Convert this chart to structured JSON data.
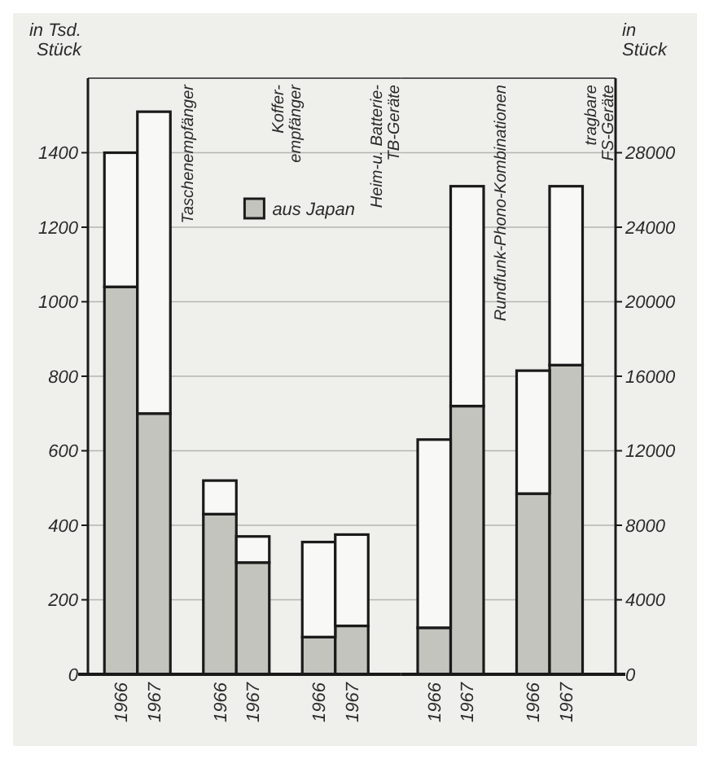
{
  "chart_data": [
    {
      "type": "bar",
      "stacked": true,
      "ylabel": "in Tsd.\nStück",
      "categories": [
        "1966",
        "1967",
        null,
        "1966",
        "1967",
        null,
        "1966",
        "1967",
        null
      ],
      "series": [
        {
          "name": "aus Japan",
          "color": "#c4c4be",
          "values": [
            1040,
            700,
            null,
            430,
            300,
            null,
            100,
            130,
            null
          ]
        },
        {
          "color": "#f8f8f6",
          "values": [
            360,
            810,
            null,
            90,
            70,
            null,
            255,
            245,
            null
          ]
        }
      ],
      "ylim": [
        0,
        1600
      ],
      "yticks": [
        0,
        200,
        400,
        600,
        800,
        1000,
        1200,
        1400
      ],
      "annotations": [
        "Taschenempfänger",
        "Koffer-\nempfänger",
        "Heim-u. Batterie-\nTB-Geräte"
      ],
      "grid": "y",
      "legend": "top right"
    },
    {
      "type": "bar",
      "stacked": true,
      "ylabel": "in\nStück",
      "categories": [
        "1966",
        "1967",
        null,
        "1966",
        "1967",
        null
      ],
      "series": [
        {
          "color": "#c4c4be",
          "values": [
            2500,
            14400,
            null,
            9700,
            16600,
            null
          ]
        },
        {
          "color": "#f8f8f6",
          "values": [
            10100,
            11800,
            null,
            6600,
            9600,
            null
          ]
        }
      ],
      "ylim": [
        0,
        32000
      ],
      "yticks": [
        0,
        4000,
        8000,
        12000,
        16000,
        20000,
        24000,
        28000
      ],
      "annotations": [
        "Rundfunk-Phono-Kombinationen",
        "tragbare\nFS-Geräte"
      ],
      "grid": "y"
    }
  ]
}
